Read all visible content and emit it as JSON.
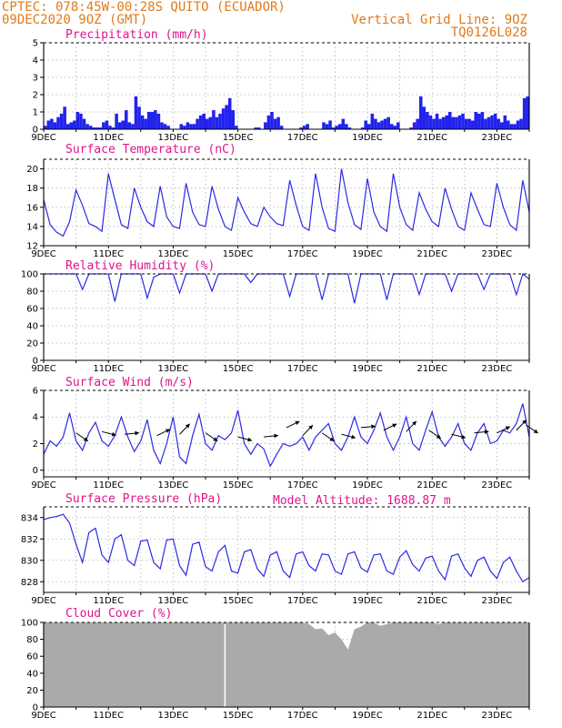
{
  "header": {
    "line1": "CPTEC:   078:45W-00:28S   QUITO (ECUADOR)",
    "line2": "09DEC2020 9OZ (GMT)",
    "grid_note": "Vertical Grid Line: 9OZ",
    "code": "TQ0126L028",
    "model_altitude": "Model Altitude: 1688.87 m"
  },
  "colors": {
    "header": "#e07a1a",
    "title": "#e0148c",
    "series": "#2a2ae6",
    "bar": "#2222ee",
    "cloud": "#aaaaaa"
  },
  "x_labels": [
    "9DEC",
    "11DEC",
    "13DEC",
    "15DEC",
    "17DEC",
    "19DEC",
    "21DEC",
    "23DEC"
  ],
  "chart_data": [
    {
      "id": "precip",
      "type": "bar",
      "title": "Precipitation (mm/h)",
      "ylim": [
        0,
        5
      ],
      "yticks": [
        0,
        1,
        2,
        3,
        4,
        5
      ],
      "xlim": [
        0,
        15
      ],
      "y_label_suffix": "",
      "x": [
        0.0,
        0.1,
        0.2,
        0.3,
        0.4,
        0.5,
        0.6,
        0.7,
        0.8,
        0.9,
        1.0,
        1.1,
        1.2,
        1.3,
        1.4,
        1.5,
        1.6,
        1.7,
        1.8,
        1.9,
        2.0,
        2.1,
        2.2,
        2.3,
        2.4,
        2.5,
        2.6,
        2.7,
        2.8,
        2.9,
        3.0,
        3.1,
        3.2,
        3.3,
        3.4,
        3.5,
        3.6,
        3.7,
        3.8,
        3.9,
        4.0,
        4.1,
        4.2,
        4.3,
        4.4,
        4.5,
        4.6,
        4.7,
        4.8,
        4.9,
        5.0,
        5.1,
        5.2,
        5.3,
        5.4,
        5.5,
        5.6,
        5.7,
        5.8,
        5.9,
        6.0,
        6.1,
        6.2,
        6.3,
        6.4,
        6.5,
        6.6,
        6.7,
        6.8,
        6.9,
        7.0,
        7.1,
        7.2,
        7.3,
        7.4,
        7.5,
        7.6,
        7.7,
        7.8,
        7.9,
        8.0,
        8.1,
        8.2,
        8.3,
        8.4,
        8.5,
        8.6,
        8.7,
        8.8,
        8.9,
        9.0,
        9.1,
        9.2,
        9.3,
        9.4,
        9.5,
        9.6,
        9.7,
        9.8,
        9.9,
        10.0,
        10.1,
        10.2,
        10.3,
        10.4,
        10.5,
        10.6,
        10.7,
        10.8,
        10.9,
        11.0,
        11.1,
        11.2,
        11.3,
        11.4,
        11.5,
        11.6,
        11.7,
        11.8,
        11.9,
        12.0,
        12.1,
        12.2,
        12.3,
        12.4,
        12.5,
        12.6,
        12.7,
        12.8,
        12.9,
        13.0,
        13.1,
        13.2,
        13.3,
        13.4,
        13.5,
        13.6,
        13.7,
        13.8,
        13.9,
        14.0,
        14.1,
        14.2,
        14.3,
        14.4,
        14.5,
        14.6,
        14.7,
        14.8,
        14.9
      ],
      "values": [
        0.2,
        0.5,
        0.6,
        0.4,
        0.7,
        0.9,
        1.3,
        0.3,
        0.4,
        0.5,
        1.0,
        0.9,
        0.6,
        0.3,
        0.2,
        0.1,
        0.1,
        0.1,
        0.4,
        0.5,
        0.2,
        0.1,
        0.9,
        0.4,
        0.5,
        1.1,
        0.4,
        0.3,
        1.9,
        1.3,
        0.8,
        0.6,
        1.0,
        1.0,
        1.1,
        0.9,
        0.4,
        0.3,
        0.2,
        0.0,
        0.0,
        0.0,
        0.3,
        0.2,
        0.4,
        0.3,
        0.3,
        0.6,
        0.8,
        0.9,
        0.6,
        0.7,
        1.1,
        0.7,
        0.9,
        1.2,
        1.4,
        1.8,
        1.1,
        0.2,
        0.0,
        0.0,
        0.0,
        0.0,
        0.0,
        0.1,
        0.1,
        0.0,
        0.4,
        0.8,
        1.0,
        0.6,
        0.7,
        0.2,
        0.0,
        0.0,
        0.0,
        0.0,
        0.0,
        0.1,
        0.2,
        0.3,
        0.0,
        0.0,
        0.0,
        0.0,
        0.4,
        0.3,
        0.5,
        0.1,
        0.2,
        0.3,
        0.6,
        0.3,
        0.1,
        0.0,
        0.0,
        0.0,
        0.1,
        0.5,
        0.3,
        0.9,
        0.6,
        0.4,
        0.5,
        0.6,
        0.7,
        0.3,
        0.2,
        0.4,
        0.0,
        0.0,
        0.0,
        0.1,
        0.4,
        0.6,
        1.9,
        1.3,
        1.0,
        0.8,
        0.6,
        0.9,
        0.6,
        0.7,
        0.8,
        1.0,
        0.7,
        0.7,
        0.8,
        0.9,
        0.6,
        0.6,
        0.5,
        1.0,
        0.9,
        1.0,
        0.6,
        0.7,
        0.8,
        0.9,
        0.6,
        0.4,
        0.8,
        0.5,
        0.3,
        0.3,
        0.5,
        0.6,
        1.8,
        1.9
      ]
    },
    {
      "id": "temp",
      "type": "line",
      "title": "Surface Temperature (nC)",
      "ylim": [
        12,
        21
      ],
      "yticks": [
        12,
        14,
        16,
        18,
        20
      ],
      "xlim": [
        0,
        15
      ],
      "x": [
        0.0,
        0.2,
        0.4,
        0.6,
        0.8,
        1.0,
        1.2,
        1.4,
        1.6,
        1.8,
        2.0,
        2.2,
        2.4,
        2.6,
        2.8,
        3.0,
        3.2,
        3.4,
        3.6,
        3.8,
        4.0,
        4.2,
        4.4,
        4.6,
        4.8,
        5.0,
        5.2,
        5.4,
        5.6,
        5.8,
        6.0,
        6.2,
        6.4,
        6.6,
        6.8,
        7.0,
        7.2,
        7.4,
        7.6,
        7.8,
        8.0,
        8.2,
        8.4,
        8.6,
        8.8,
        9.0,
        9.2,
        9.4,
        9.6,
        9.8,
        10.0,
        10.2,
        10.4,
        10.6,
        10.8,
        11.0,
        11.2,
        11.4,
        11.6,
        11.8,
        12.0,
        12.2,
        12.4,
        12.6,
        12.8,
        13.0,
        13.2,
        13.4,
        13.6,
        13.8,
        14.0,
        14.2,
        14.4,
        14.6,
        14.8,
        15.0
      ],
      "values": [
        16.8,
        14.2,
        13.4,
        13.0,
        14.5,
        17.8,
        16.2,
        14.3,
        14.0,
        13.5,
        19.5,
        16.8,
        14.2,
        13.8,
        18.0,
        16.0,
        14.5,
        14.0,
        18.2,
        15.0,
        14.0,
        13.8,
        18.5,
        15.5,
        14.2,
        14.0,
        18.2,
        15.8,
        14.0,
        13.6,
        17.0,
        15.5,
        14.3,
        14.0,
        16.0,
        15.0,
        14.3,
        14.1,
        18.8,
        16.2,
        14.0,
        13.6,
        19.5,
        16.0,
        13.8,
        13.5,
        20.0,
        16.5,
        14.2,
        13.7,
        19.0,
        15.5,
        14.0,
        13.5,
        19.5,
        16.0,
        14.2,
        13.6,
        17.5,
        15.8,
        14.5,
        14.0,
        18.0,
        15.8,
        14.0,
        13.6,
        17.5,
        15.8,
        14.2,
        14.0,
        18.5,
        16.0,
        14.2,
        13.6,
        18.8,
        15.5
      ]
    },
    {
      "id": "rh",
      "type": "line",
      "title": "Relative Humidity (%)",
      "ylim": [
        0,
        100
      ],
      "yticks": [
        0,
        20,
        40,
        60,
        80,
        100
      ],
      "xlim": [
        0,
        15
      ],
      "x": [
        0.0,
        0.2,
        0.4,
        0.6,
        0.8,
        1.0,
        1.2,
        1.4,
        1.6,
        1.8,
        2.0,
        2.2,
        2.4,
        2.6,
        2.8,
        3.0,
        3.2,
        3.4,
        3.6,
        3.8,
        4.0,
        4.2,
        4.4,
        4.6,
        4.8,
        5.0,
        5.2,
        5.4,
        5.6,
        5.8,
        6.0,
        6.2,
        6.4,
        6.6,
        6.8,
        7.0,
        7.2,
        7.4,
        7.6,
        7.8,
        8.0,
        8.2,
        8.4,
        8.6,
        8.8,
        9.0,
        9.2,
        9.4,
        9.6,
        9.8,
        10.0,
        10.2,
        10.4,
        10.6,
        10.8,
        11.0,
        11.2,
        11.4,
        11.6,
        11.8,
        12.0,
        12.2,
        12.4,
        12.6,
        12.8,
        13.0,
        13.2,
        13.4,
        13.6,
        13.8,
        14.0,
        14.2,
        14.4,
        14.6,
        14.8,
        15.0
      ],
      "values": [
        100,
        100,
        100,
        100,
        100,
        100,
        82,
        100,
        100,
        100,
        100,
        68,
        100,
        100,
        100,
        100,
        72,
        96,
        100,
        100,
        100,
        78,
        100,
        100,
        100,
        100,
        80,
        100,
        100,
        100,
        100,
        100,
        90,
        100,
        100,
        100,
        100,
        100,
        74,
        100,
        100,
        100,
        100,
        70,
        100,
        100,
        100,
        100,
        66,
        100,
        100,
        100,
        100,
        70,
        100,
        100,
        100,
        100,
        76,
        100,
        100,
        100,
        100,
        80,
        100,
        100,
        100,
        100,
        82,
        100,
        100,
        100,
        100,
        76,
        100,
        94
      ]
    },
    {
      "id": "wind",
      "type": "line",
      "title": "Surface Wind (m/s)",
      "ylim": [
        -0.5,
        6
      ],
      "yticks": [
        0,
        2,
        4,
        6
      ],
      "xlim": [
        0,
        15
      ],
      "x": [
        0.0,
        0.2,
        0.4,
        0.6,
        0.8,
        1.0,
        1.2,
        1.4,
        1.6,
        1.8,
        2.0,
        2.2,
        2.4,
        2.6,
        2.8,
        3.0,
        3.2,
        3.4,
        3.6,
        3.8,
        4.0,
        4.2,
        4.4,
        4.6,
        4.8,
        5.0,
        5.2,
        5.4,
        5.6,
        5.8,
        6.0,
        6.2,
        6.4,
        6.6,
        6.8,
        7.0,
        7.2,
        7.4,
        7.6,
        7.8,
        8.0,
        8.2,
        8.4,
        8.6,
        8.8,
        9.0,
        9.2,
        9.4,
        9.6,
        9.8,
        10.0,
        10.2,
        10.4,
        10.6,
        10.8,
        11.0,
        11.2,
        11.4,
        11.6,
        11.8,
        12.0,
        12.2,
        12.4,
        12.6,
        12.8,
        13.0,
        13.2,
        13.4,
        13.6,
        13.8,
        14.0,
        14.2,
        14.4,
        14.6,
        14.8,
        15.0
      ],
      "values": [
        1.2,
        2.2,
        1.8,
        2.5,
        4.3,
        2.2,
        1.5,
        2.8,
        3.6,
        2.2,
        1.8,
        2.6,
        4.0,
        2.5,
        1.4,
        2.2,
        3.8,
        1.5,
        0.5,
        2.0,
        4.0,
        1.0,
        0.5,
        2.6,
        4.2,
        2.0,
        1.5,
        2.6,
        2.3,
        2.8,
        4.5,
        2.0,
        1.2,
        2.0,
        1.6,
        0.3,
        1.2,
        2.0,
        1.8,
        2.0,
        2.5,
        1.5,
        2.5,
        3.0,
        3.5,
        2.0,
        1.5,
        2.5,
        4.0,
        2.5,
        2.0,
        3.0,
        4.3,
        2.5,
        1.5,
        2.5,
        4.0,
        2.0,
        1.5,
        3.0,
        4.4,
        2.5,
        1.8,
        2.5,
        3.5,
        2.0,
        1.5,
        2.8,
        3.5,
        2.0,
        2.2,
        3.0,
        2.8,
        3.5,
        5.0,
        2.5
      ],
      "arrows_x": [
        1.0,
        1.8,
        2.5,
        3.5,
        4.2,
        5.0,
        6.0,
        6.8,
        7.5,
        8.0,
        8.6,
        9.2,
        9.8,
        10.5,
        11.2,
        11.9,
        12.6,
        13.3,
        14.0,
        14.6,
        14.9
      ],
      "arrows_y": [
        2.8,
        2.9,
        2.7,
        2.6,
        2.7,
        2.8,
        2.5,
        2.5,
        3.2,
        2.6,
        2.8,
        2.7,
        3.2,
        3.0,
        2.9,
        3.0,
        2.7,
        2.8,
        2.8,
        3.0,
        3.4
      ]
    },
    {
      "id": "pressure",
      "type": "line",
      "title": "Surface Pressure (hPa)",
      "ylim": [
        827,
        835
      ],
      "yticks": [
        828,
        830,
        832,
        834
      ],
      "xlim": [
        0,
        15
      ],
      "x": [
        0.0,
        0.2,
        0.4,
        0.6,
        0.8,
        1.0,
        1.2,
        1.4,
        1.6,
        1.8,
        2.0,
        2.2,
        2.4,
        2.6,
        2.8,
        3.0,
        3.2,
        3.4,
        3.6,
        3.8,
        4.0,
        4.2,
        4.4,
        4.6,
        4.8,
        5.0,
        5.2,
        5.4,
        5.6,
        5.8,
        6.0,
        6.2,
        6.4,
        6.6,
        6.8,
        7.0,
        7.2,
        7.4,
        7.6,
        7.8,
        8.0,
        8.2,
        8.4,
        8.6,
        8.8,
        9.0,
        9.2,
        9.4,
        9.6,
        9.8,
        10.0,
        10.2,
        10.4,
        10.6,
        10.8,
        11.0,
        11.2,
        11.4,
        11.6,
        11.8,
        12.0,
        12.2,
        12.4,
        12.6,
        12.8,
        13.0,
        13.2,
        13.4,
        13.6,
        13.8,
        14.0,
        14.2,
        14.4,
        14.6,
        14.8,
        15.0
      ],
      "values": [
        833.8,
        834.0,
        834.1,
        834.3,
        833.5,
        831.5,
        829.8,
        832.6,
        833.0,
        830.5,
        829.8,
        832.0,
        832.4,
        830.0,
        829.5,
        831.8,
        831.9,
        829.8,
        829.2,
        831.9,
        832.0,
        829.5,
        828.6,
        831.5,
        831.7,
        829.4,
        829.0,
        830.8,
        831.4,
        829.0,
        828.8,
        830.8,
        831.0,
        829.2,
        828.5,
        830.5,
        830.8,
        829.0,
        828.4,
        830.6,
        830.8,
        829.5,
        829.0,
        830.6,
        830.5,
        829.0,
        828.7,
        830.6,
        830.8,
        829.3,
        828.9,
        830.5,
        830.6,
        829.0,
        828.7,
        830.3,
        830.9,
        829.6,
        829.0,
        830.2,
        830.4,
        829.0,
        828.2,
        830.4,
        830.6,
        829.3,
        828.5,
        830.0,
        830.3,
        829.0,
        828.3,
        829.8,
        830.3,
        829.0,
        828.0,
        828.4
      ]
    },
    {
      "id": "cloud",
      "type": "area",
      "title": "Cloud Cover (%)",
      "ylim": [
        0,
        100
      ],
      "yticks": [
        0,
        20,
        40,
        60,
        80,
        100
      ],
      "xlim": [
        0,
        15
      ],
      "x": [
        0.0,
        0.2,
        0.4,
        0.6,
        0.8,
        1.0,
        1.2,
        1.4,
        1.6,
        1.8,
        2.0,
        2.2,
        2.4,
        2.6,
        2.8,
        3.0,
        3.2,
        3.4,
        3.6,
        3.8,
        4.0,
        4.2,
        4.4,
        4.6,
        4.8,
        5.0,
        5.2,
        5.4,
        5.6,
        5.8,
        6.0,
        6.2,
        6.4,
        6.6,
        6.8,
        7.0,
        7.2,
        7.4,
        7.6,
        7.8,
        8.0,
        8.2,
        8.4,
        8.6,
        8.8,
        9.0,
        9.2,
        9.4,
        9.6,
        9.8,
        10.0,
        10.2,
        10.4,
        10.6,
        10.8,
        11.0,
        11.2,
        11.4,
        11.6,
        11.8,
        12.0,
        12.2,
        12.4,
        12.6,
        12.8,
        13.0,
        13.2,
        13.4,
        13.6,
        13.8,
        14.0,
        14.2,
        14.4,
        14.6,
        14.8,
        15.0
      ],
      "values": [
        100,
        100,
        100,
        100,
        100,
        100,
        100,
        100,
        100,
        100,
        100,
        100,
        100,
        100,
        100,
        100,
        100,
        100,
        100,
        100,
        100,
        100,
        100,
        100,
        100,
        100,
        100,
        100,
        100,
        100,
        100,
        100,
        100,
        100,
        100,
        100,
        100,
        100,
        100,
        100,
        100,
        98,
        92,
        93,
        85,
        88,
        80,
        68,
        92,
        95,
        100,
        100,
        96,
        98,
        100,
        100,
        100,
        100,
        100,
        100,
        100,
        98,
        100,
        100,
        100,
        100,
        100,
        100,
        100,
        100,
        100,
        100,
        100,
        100,
        100,
        100
      ]
    }
  ]
}
